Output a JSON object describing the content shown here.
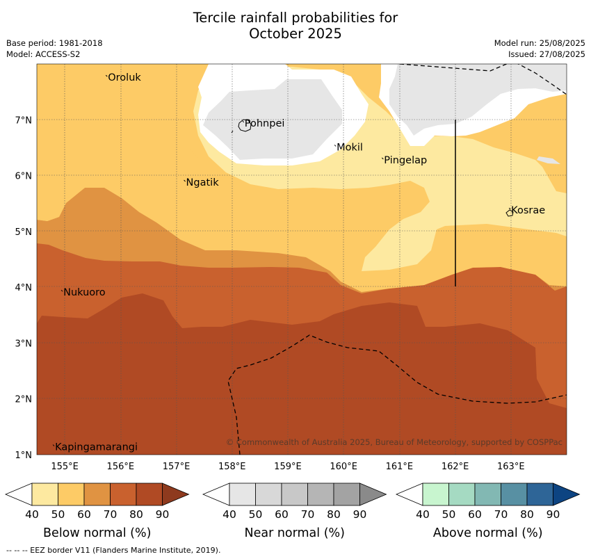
{
  "title_line1": "Tercile rainfall probabilities for",
  "title_line2": "October 2025",
  "base_period": "Base period: 1981-2018",
  "model": "Model: ACCESS-S2",
  "model_run": "Model run: 25/08/2025",
  "issued": "Issued: 27/08/2025",
  "copyright": "© Commonwealth of Australia 2025, Bureau of Meteorology, supported by COSPPac",
  "footer": "-- -- -- EEZ border V11 (Flanders Marine Institute, 2019).",
  "places": [
    {
      "name": "Oroluk",
      "lon": 155.75,
      "lat": 7.7
    },
    {
      "name": "Pohnpei",
      "lon": 158.2,
      "lat": 6.88
    },
    {
      "name": "Mokil",
      "lon": 159.85,
      "lat": 6.45
    },
    {
      "name": "Pingelap",
      "lon": 160.7,
      "lat": 6.22
    },
    {
      "name": "Ngatik",
      "lon": 157.15,
      "lat": 5.82
    },
    {
      "name": "Kosrae",
      "lon": 162.98,
      "lat": 5.32
    },
    {
      "name": "Nukuoro",
      "lon": 154.95,
      "lat": 3.85
    },
    {
      "name": "Kapingamarangi",
      "lon": 154.8,
      "lat": 1.08
    }
  ],
  "axes": {
    "lon_ticks": [
      "155°E",
      "156°E",
      "157°E",
      "158°E",
      "159°E",
      "160°E",
      "161°E",
      "162°E",
      "163°E"
    ],
    "lat_ticks": [
      "1°N",
      "2°N",
      "3°N",
      "4°N",
      "5°N",
      "6°N",
      "7°N"
    ]
  },
  "legends": [
    {
      "label": "Below normal (%)",
      "colors": [
        "#fde9a0",
        "#fdcb66",
        "#e09342",
        "#c9612e",
        "#b04a24",
        "#8e3a1e"
      ]
    },
    {
      "label": "Near normal (%)",
      "colors": [
        "#e6e6e6",
        "#d8d8d8",
        "#c8c8c8",
        "#b5b5b5",
        "#a3a3a3",
        "#8a8a8a"
      ]
    },
    {
      "label": "Above normal (%)",
      "colors": [
        "#c8f5cf",
        "#a5dac2",
        "#82b8b3",
        "#5890a3",
        "#2e6597",
        "#0d4482"
      ]
    }
  ],
  "legend_ticks": [
    "40",
    "50",
    "60",
    "70",
    "80",
    "90"
  ]
}
